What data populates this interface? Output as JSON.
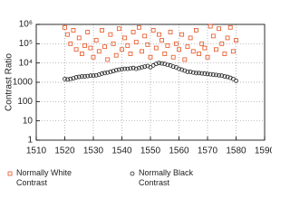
{
  "chart_data": {
    "type": "scatter",
    "y_label": "Contrast Ratio",
    "ylog": true,
    "grid": true,
    "legend": "bottom",
    "xlim": [
      1510,
      1590
    ],
    "xticks": [
      1510,
      1520,
      1530,
      1540,
      1550,
      1560,
      1570,
      1580,
      1590
    ],
    "ylim": [
      1,
      1000000
    ],
    "yticks": [
      1,
      10,
      100,
      1000,
      {
        "value": 10000,
        "label": "10⁴"
      },
      {
        "value": 100000,
        "label": "10⁵"
      },
      {
        "value": 1000000,
        "label": "10⁶"
      }
    ],
    "series": [
      {
        "name": "Normally White Contrast",
        "color": "#e8501e",
        "marker": "square",
        "x": [
          1520,
          1521,
          1522,
          1523,
          1524,
          1525,
          1526,
          1527,
          1528,
          1529,
          1530,
          1531,
          1532,
          1533,
          1534,
          1535,
          1536,
          1537,
          1538,
          1539,
          1540,
          1541,
          1542,
          1543,
          1544,
          1545,
          1546,
          1547,
          1548,
          1549,
          1550,
          1551,
          1552,
          1553,
          1554,
          1555,
          1556,
          1557,
          1558,
          1559,
          1560,
          1561,
          1562,
          1563,
          1564,
          1565,
          1566,
          1567,
          1568,
          1569,
          1570,
          1571,
          1572,
          1573,
          1574,
          1575,
          1576,
          1577,
          1578,
          1579,
          1580
        ],
        "values": [
          700000,
          300000,
          100000,
          500000,
          50000,
          200000,
          30000,
          80000,
          400000,
          60000,
          20000,
          150000,
          40000,
          500000,
          70000,
          15000,
          300000,
          100000,
          25000,
          600000,
          50000,
          200000,
          80000,
          30000,
          400000,
          120000,
          700000,
          40000,
          250000,
          90000,
          20000,
          500000,
          60000,
          300000,
          150000,
          30000,
          80000,
          400000,
          20000,
          100000,
          50000,
          300000,
          15000,
          70000,
          200000,
          40000,
          500000,
          30000,
          100000,
          60000,
          20000,
          800000,
          250000,
          50000,
          600000,
          100000,
          30000,
          200000,
          700000,
          40000,
          150000
        ]
      },
      {
        "name": "Normally Black Contrast",
        "color": "#222222",
        "marker": "circle",
        "x": [
          1520,
          1521,
          1522,
          1523,
          1524,
          1525,
          1526,
          1527,
          1528,
          1529,
          1530,
          1531,
          1532,
          1533,
          1534,
          1535,
          1536,
          1537,
          1538,
          1539,
          1540,
          1541,
          1542,
          1543,
          1544,
          1545,
          1546,
          1547,
          1548,
          1549,
          1550,
          1551,
          1552,
          1553,
          1554,
          1555,
          1556,
          1557,
          1558,
          1559,
          1560,
          1561,
          1562,
          1563,
          1564,
          1565,
          1566,
          1567,
          1568,
          1569,
          1570,
          1571,
          1572,
          1573,
          1574,
          1575,
          1576,
          1577,
          1578,
          1579,
          1580
        ],
        "values": [
          1500,
          1400,
          1500,
          1600,
          1800,
          1900,
          2000,
          2000,
          2100,
          2200,
          2200,
          2300,
          2500,
          2800,
          3000,
          3200,
          3500,
          3800,
          4200,
          4500,
          4800,
          5000,
          5000,
          5200,
          5500,
          5000,
          5500,
          6000,
          6500,
          7000,
          6000,
          7500,
          9000,
          10000,
          9500,
          9000,
          8000,
          7500,
          6500,
          6000,
          5000,
          4500,
          4000,
          3500,
          3500,
          3200,
          3000,
          3000,
          2900,
          2800,
          2700,
          2600,
          2500,
          2400,
          2300,
          2200,
          2000,
          1900,
          1700,
          1500,
          1200
        ]
      }
    ]
  }
}
